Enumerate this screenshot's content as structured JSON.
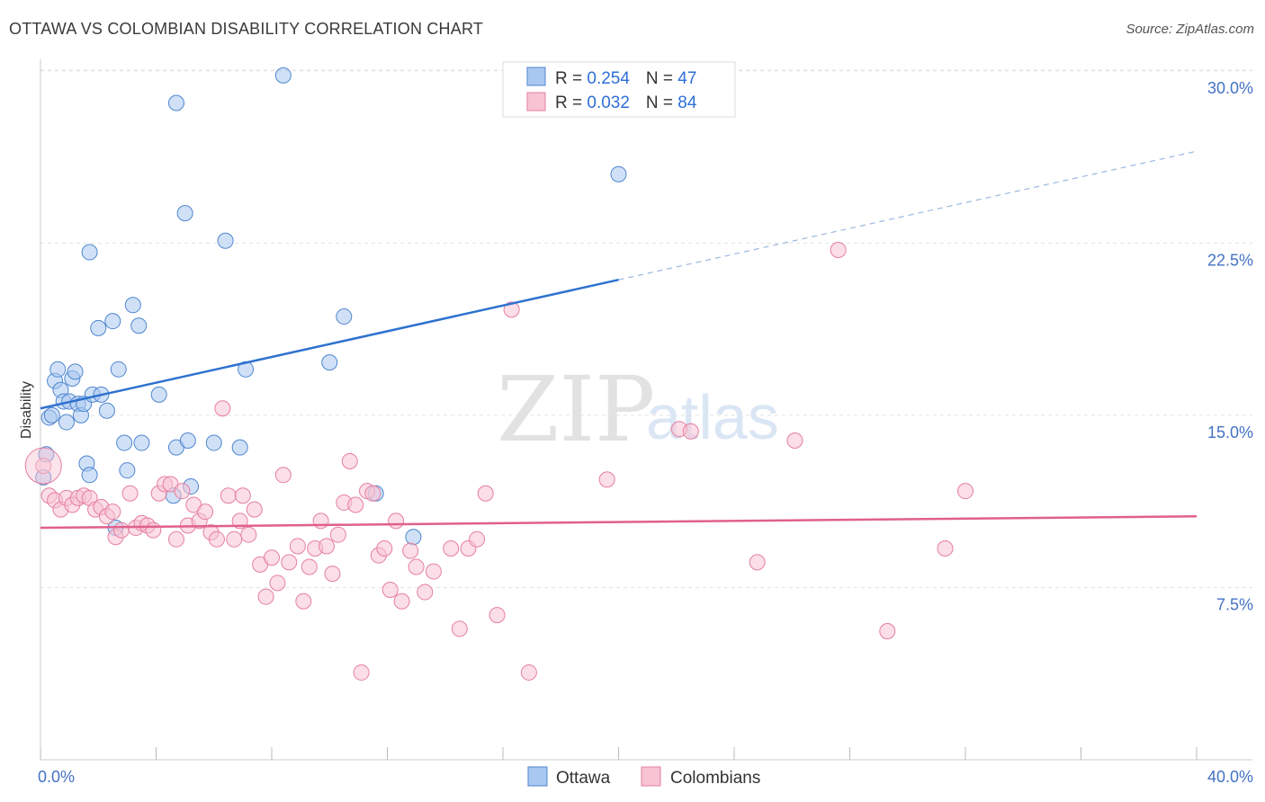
{
  "title": "OTTAWA VS COLOMBIAN DISABILITY CORRELATION CHART",
  "source": "Source: ZipAtlas.com",
  "watermark": {
    "zip": "ZIP",
    "atlas": "atlas"
  },
  "chart_data": {
    "type": "scatter",
    "ylabel": "Disability",
    "xlabel": "",
    "xlim": [
      0,
      40
    ],
    "ylim": [
      0,
      30.5
    ],
    "x_tick_labels": [
      {
        "value": 0,
        "label": "0.0%"
      },
      {
        "value": 40,
        "label": "40.0%"
      }
    ],
    "y_ticks": [
      {
        "value": 7.5,
        "label": "7.5%"
      },
      {
        "value": 15,
        "label": "15.0%"
      },
      {
        "value": 22.5,
        "label": "22.5%"
      },
      {
        "value": 30,
        "label": "30.0%"
      }
    ],
    "grid": "horizontal dashed",
    "legend_position": "top-center",
    "stats": [
      {
        "r_label": "R = ",
        "r": "0.254",
        "n_label": "N = ",
        "n": "47"
      },
      {
        "r_label": "R = ",
        "r": "0.032",
        "n_label": "N = ",
        "n": "84"
      }
    ],
    "series": [
      {
        "name": "Ottawa",
        "fill": "#a9c8f0",
        "stroke": "#4f86cf",
        "line_color": "#2f72cf",
        "trend": {
          "x0": 0,
          "y0": 15.3,
          "x1": 20,
          "y1": 20.9,
          "dash_to_x": 40,
          "dash_to_y": 26.5
        },
        "points": [
          [
            0.1,
            12.3
          ],
          [
            0.2,
            13.3
          ],
          [
            0.3,
            14.9
          ],
          [
            0.4,
            15.0
          ],
          [
            0.5,
            16.5
          ],
          [
            0.6,
            17.0
          ],
          [
            0.7,
            16.1
          ],
          [
            0.8,
            15.6
          ],
          [
            0.9,
            14.7
          ],
          [
            1.0,
            15.6
          ],
          [
            1.1,
            16.6
          ],
          [
            1.2,
            16.9
          ],
          [
            1.3,
            15.5
          ],
          [
            1.4,
            15.0
          ],
          [
            1.5,
            15.5
          ],
          [
            1.6,
            12.9
          ],
          [
            1.7,
            12.4
          ],
          [
            1.8,
            15.9
          ],
          [
            2.1,
            15.9
          ],
          [
            2.3,
            15.2
          ],
          [
            2.0,
            18.8
          ],
          [
            2.5,
            19.1
          ],
          [
            1.7,
            22.1
          ],
          [
            2.7,
            17.0
          ],
          [
            2.9,
            13.8
          ],
          [
            3.0,
            12.6
          ],
          [
            3.2,
            19.8
          ],
          [
            3.4,
            18.9
          ],
          [
            3.5,
            13.8
          ],
          [
            4.1,
            15.9
          ],
          [
            4.6,
            11.5
          ],
          [
            4.7,
            13.6
          ],
          [
            5.1,
            13.9
          ],
          [
            5.2,
            11.9
          ],
          [
            4.7,
            28.6
          ],
          [
            5.0,
            23.8
          ],
          [
            6.0,
            13.8
          ],
          [
            6.4,
            22.6
          ],
          [
            6.9,
            13.6
          ],
          [
            7.1,
            17.0
          ],
          [
            8.4,
            29.8
          ],
          [
            10.0,
            17.3
          ],
          [
            10.5,
            19.3
          ],
          [
            11.6,
            11.6
          ],
          [
            12.9,
            9.7
          ],
          [
            20.0,
            25.5
          ],
          [
            2.6,
            10.1
          ]
        ]
      },
      {
        "name": "Colombians",
        "fill": "#f8c3d3",
        "stroke": "#e57fa0",
        "line_color": "#e0608c",
        "trend": {
          "x0": 0,
          "y0": 10.1,
          "x1": 40,
          "y1": 10.6
        },
        "points": [
          [
            0.1,
            12.8
          ],
          [
            0.3,
            11.5
          ],
          [
            0.5,
            11.3
          ],
          [
            0.7,
            10.9
          ],
          [
            0.9,
            11.4
          ],
          [
            1.1,
            11.1
          ],
          [
            1.3,
            11.4
          ],
          [
            1.5,
            11.5
          ],
          [
            1.7,
            11.4
          ],
          [
            1.9,
            10.9
          ],
          [
            2.1,
            11.0
          ],
          [
            2.3,
            10.6
          ],
          [
            2.5,
            10.8
          ],
          [
            2.6,
            9.7
          ],
          [
            2.8,
            10.0
          ],
          [
            3.1,
            11.6
          ],
          [
            3.3,
            10.1
          ],
          [
            3.5,
            10.3
          ],
          [
            3.7,
            10.2
          ],
          [
            3.9,
            10.0
          ],
          [
            4.1,
            11.6
          ],
          [
            4.3,
            12.0
          ],
          [
            4.5,
            12.0
          ],
          [
            4.7,
            9.6
          ],
          [
            4.9,
            11.7
          ],
          [
            5.1,
            10.2
          ],
          [
            5.3,
            11.1
          ],
          [
            5.5,
            10.4
          ],
          [
            5.7,
            10.8
          ],
          [
            5.9,
            9.9
          ],
          [
            6.1,
            9.6
          ],
          [
            6.3,
            15.3
          ],
          [
            6.5,
            11.5
          ],
          [
            6.7,
            9.6
          ],
          [
            6.9,
            10.4
          ],
          [
            7.0,
            11.5
          ],
          [
            7.2,
            9.8
          ],
          [
            7.4,
            10.9
          ],
          [
            7.6,
            8.5
          ],
          [
            7.8,
            7.1
          ],
          [
            8.0,
            8.8
          ],
          [
            8.2,
            7.7
          ],
          [
            8.4,
            12.4
          ],
          [
            8.6,
            8.6
          ],
          [
            8.9,
            9.3
          ],
          [
            9.1,
            6.9
          ],
          [
            9.3,
            8.4
          ],
          [
            9.5,
            9.2
          ],
          [
            9.7,
            10.4
          ],
          [
            9.9,
            9.3
          ],
          [
            10.1,
            8.1
          ],
          [
            10.3,
            9.8
          ],
          [
            10.5,
            11.2
          ],
          [
            10.7,
            13.0
          ],
          [
            10.9,
            11.1
          ],
          [
            11.1,
            3.8
          ],
          [
            11.3,
            11.7
          ],
          [
            11.5,
            11.6
          ],
          [
            11.7,
            8.9
          ],
          [
            11.9,
            9.2
          ],
          [
            12.1,
            7.4
          ],
          [
            12.3,
            10.4
          ],
          [
            12.5,
            6.9
          ],
          [
            12.8,
            9.1
          ],
          [
            13.0,
            8.4
          ],
          [
            13.3,
            7.3
          ],
          [
            13.6,
            8.2
          ],
          [
            14.2,
            9.2
          ],
          [
            14.5,
            5.7
          ],
          [
            14.8,
            9.2
          ],
          [
            15.1,
            9.6
          ],
          [
            15.4,
            11.6
          ],
          [
            15.8,
            6.3
          ],
          [
            16.3,
            19.6
          ],
          [
            16.9,
            3.8
          ],
          [
            19.6,
            12.2
          ],
          [
            22.1,
            14.4
          ],
          [
            22.5,
            14.3
          ],
          [
            24.8,
            8.6
          ],
          [
            26.1,
            13.9
          ],
          [
            27.6,
            22.2
          ],
          [
            29.3,
            5.6
          ],
          [
            31.3,
            9.2
          ],
          [
            32.0,
            11.7
          ]
        ]
      }
    ]
  }
}
